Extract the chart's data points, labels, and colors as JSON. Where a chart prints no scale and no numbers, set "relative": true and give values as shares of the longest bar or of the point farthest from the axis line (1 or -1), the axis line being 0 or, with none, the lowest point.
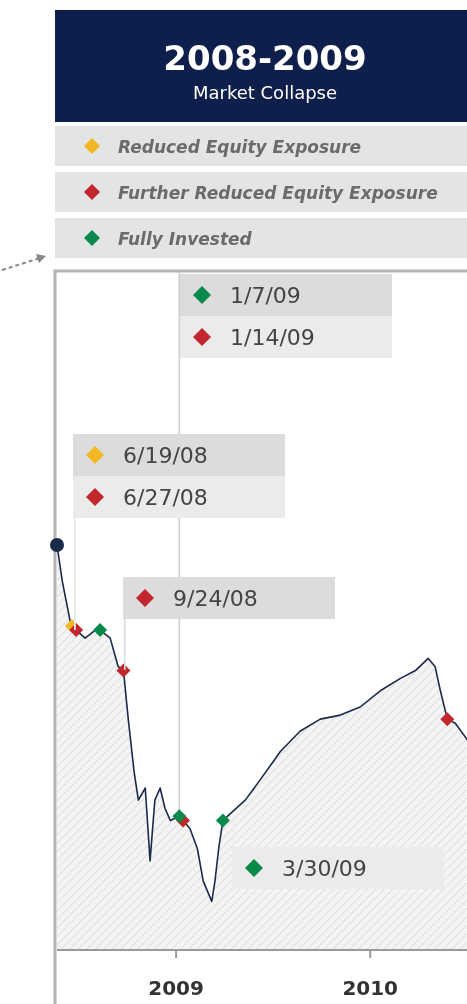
{
  "chart_data": {
    "type": "area",
    "title": "2008-2009",
    "subtitle": "Market Collapse",
    "relative": true,
    "legend": "top",
    "ref_lines": [
      {
        "axis": "x",
        "value": "2009-01-07",
        "color": "#cfcfcf"
      }
    ],
    "xlim": [
      "2008-05-22",
      "2010-07-02"
    ],
    "xticks": [
      {
        "value": "2009-01-01",
        "label": "2009"
      },
      {
        "value": "2010-01-01",
        "label": "2010"
      }
    ],
    "series": [
      {
        "color": "#1b2a4a",
        "x": [
          "2008-05-22",
          "2008-06-01",
          "2008-06-16",
          "2008-06-19",
          "2008-06-27",
          "2008-07-14",
          "2008-08-02",
          "2008-08-11",
          "2008-08-30",
          "2008-09-14",
          "2008-09-24",
          "2008-10-03",
          "2008-10-14",
          "2008-10-22",
          "2008-11-04",
          "2008-11-13",
          "2008-11-22",
          "2008-12-02",
          "2008-12-11",
          "2008-12-21",
          "2009-01-07",
          "2009-01-14",
          "2009-01-27",
          "2009-02-10",
          "2009-02-21",
          "2009-03-09",
          "2009-03-15",
          "2009-03-22",
          "2009-03-30",
          "2009-05-11",
          "2009-06-08",
          "2009-07-16",
          "2009-08-22",
          "2009-09-29",
          "2009-11-06",
          "2009-12-13",
          "2010-01-20",
          "2010-02-26",
          "2010-03-27",
          "2010-04-20",
          "2010-05-03",
          "2010-05-13",
          "2010-05-26",
          "2010-06-10",
          "2010-07-02"
        ],
        "values": [
          1.0,
          0.91,
          0.81,
          0.8,
          0.79,
          0.77,
          0.79,
          0.79,
          0.77,
          0.7,
          0.69,
          0.57,
          0.44,
          0.37,
          0.4,
          0.22,
          0.37,
          0.4,
          0.35,
          0.32,
          0.33,
          0.32,
          0.3,
          0.25,
          0.17,
          0.12,
          0.17,
          0.25,
          0.32,
          0.37,
          0.42,
          0.49,
          0.54,
          0.57,
          0.58,
          0.6,
          0.64,
          0.67,
          0.69,
          0.72,
          0.7,
          0.64,
          0.57,
          0.56,
          0.52
        ]
      },
      {
        "type": "scatter",
        "marker": "circle",
        "color": "#1b2a4a",
        "x": [
          "2008-05-22"
        ],
        "values": [
          1.0
        ]
      },
      {
        "type": "scatter",
        "marker": "diamond",
        "name": "Reduced Equity Exposure",
        "color": "#f2b824",
        "x": [
          "2008-06-19"
        ],
        "values": [
          0.8
        ]
      },
      {
        "type": "scatter",
        "marker": "diamond",
        "name": "Further Reduced Equity Exposure",
        "color": "#c1272d",
        "x": [
          "2008-06-27",
          "2008-09-24",
          "2009-01-14",
          "2010-05-26"
        ],
        "values": [
          0.79,
          0.69,
          0.32,
          0.57
        ]
      },
      {
        "type": "scatter",
        "marker": "diamond",
        "name": "Fully Invested",
        "color": "#0a8a4a",
        "x": [
          "2008-08-11",
          "2009-01-07",
          "2009-03-30"
        ],
        "values": [
          0.79,
          0.33,
          0.32
        ]
      }
    ],
    "annotations": [
      "1/7/09",
      "1/14/09",
      "6/19/08",
      "6/27/08",
      "9/24/08",
      "3/30/09"
    ]
  }
}
